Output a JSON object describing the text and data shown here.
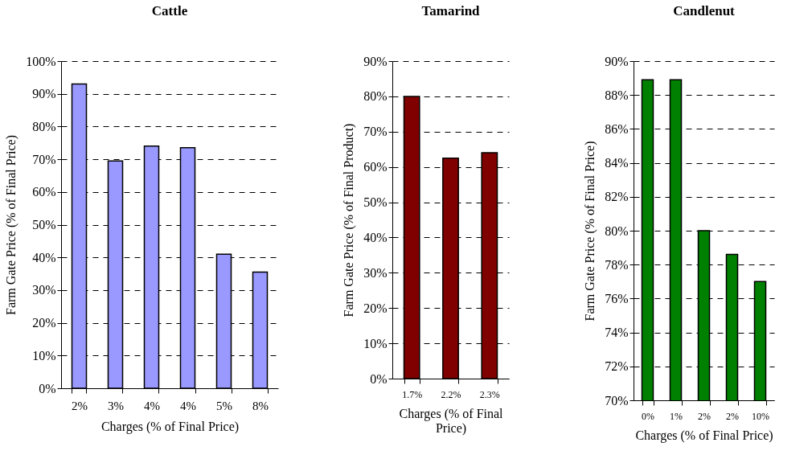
{
  "chart_data": [
    {
      "type": "bar",
      "title": "Cattle",
      "xlabel": "Charges (% of Final Price)",
      "ylabel": "Farm Gate Price (% of Final Price)",
      "categories": [
        "2%",
        "3%",
        "4%",
        "4%",
        "5%",
        "8%"
      ],
      "values": [
        93,
        69.5,
        74,
        73.5,
        41,
        35.5
      ],
      "color": "#9999ff",
      "ylim": [
        0,
        100
      ],
      "yticks": [
        {
          "value": 0,
          "label": "0%"
        },
        {
          "value": 10,
          "label": "10%"
        },
        {
          "value": 20,
          "label": "20%"
        },
        {
          "value": 30,
          "label": "30%"
        },
        {
          "value": 40,
          "label": "40%"
        },
        {
          "value": 50,
          "label": "50%"
        },
        {
          "value": 60,
          "label": "60%"
        },
        {
          "value": 70,
          "label": "70%"
        },
        {
          "value": 80,
          "label": "80%"
        },
        {
          "value": 90,
          "label": "90%"
        },
        {
          "value": 100,
          "label": "100%"
        }
      ],
      "grid": "y"
    },
    {
      "type": "bar",
      "title": "Tamarind",
      "xlabel": "Charges (% of Final Price)",
      "ylabel": "Farm Gate Price (% of Final Product)",
      "categories": [
        "1.7%",
        "2.2%",
        "2.3%"
      ],
      "values": [
        80,
        62.5,
        64
      ],
      "color": "#800000",
      "ylim": [
        0,
        90
      ],
      "yticks": [
        {
          "value": 0,
          "label": "0%"
        },
        {
          "value": 10,
          "label": "10%"
        },
        {
          "value": 20,
          "label": "20%"
        },
        {
          "value": 30,
          "label": "30%"
        },
        {
          "value": 40,
          "label": "40%"
        },
        {
          "value": 50,
          "label": "50%"
        },
        {
          "value": 60,
          "label": "60%"
        },
        {
          "value": 70,
          "label": "70%"
        },
        {
          "value": 80,
          "label": "80%"
        },
        {
          "value": 90,
          "label": "90%"
        }
      ],
      "grid": "y"
    },
    {
      "type": "bar",
      "title": "Candlenut",
      "xlabel": "Charges (% of Final Price)",
      "ylabel": "Farm Gate Price (% of Final Price)",
      "categories": [
        "0%",
        "1%",
        "2%",
        "2%",
        "10%"
      ],
      "values": [
        88.9,
        88.9,
        80,
        78.6,
        77
      ],
      "color": "#008000",
      "ylim": [
        70,
        90
      ],
      "yticks": [
        {
          "value": 70,
          "label": "70%"
        },
        {
          "value": 72,
          "label": "72%"
        },
        {
          "value": 74,
          "label": "74%"
        },
        {
          "value": 76,
          "label": "76%"
        },
        {
          "value": 78,
          "label": "78%"
        },
        {
          "value": 80,
          "label": "80%"
        },
        {
          "value": 82,
          "label": "82%"
        },
        {
          "value": 84,
          "label": "84%"
        },
        {
          "value": 86,
          "label": "86%"
        },
        {
          "value": 88,
          "label": "88%"
        },
        {
          "value": 90,
          "label": "90%"
        }
      ],
      "grid": "y"
    }
  ]
}
